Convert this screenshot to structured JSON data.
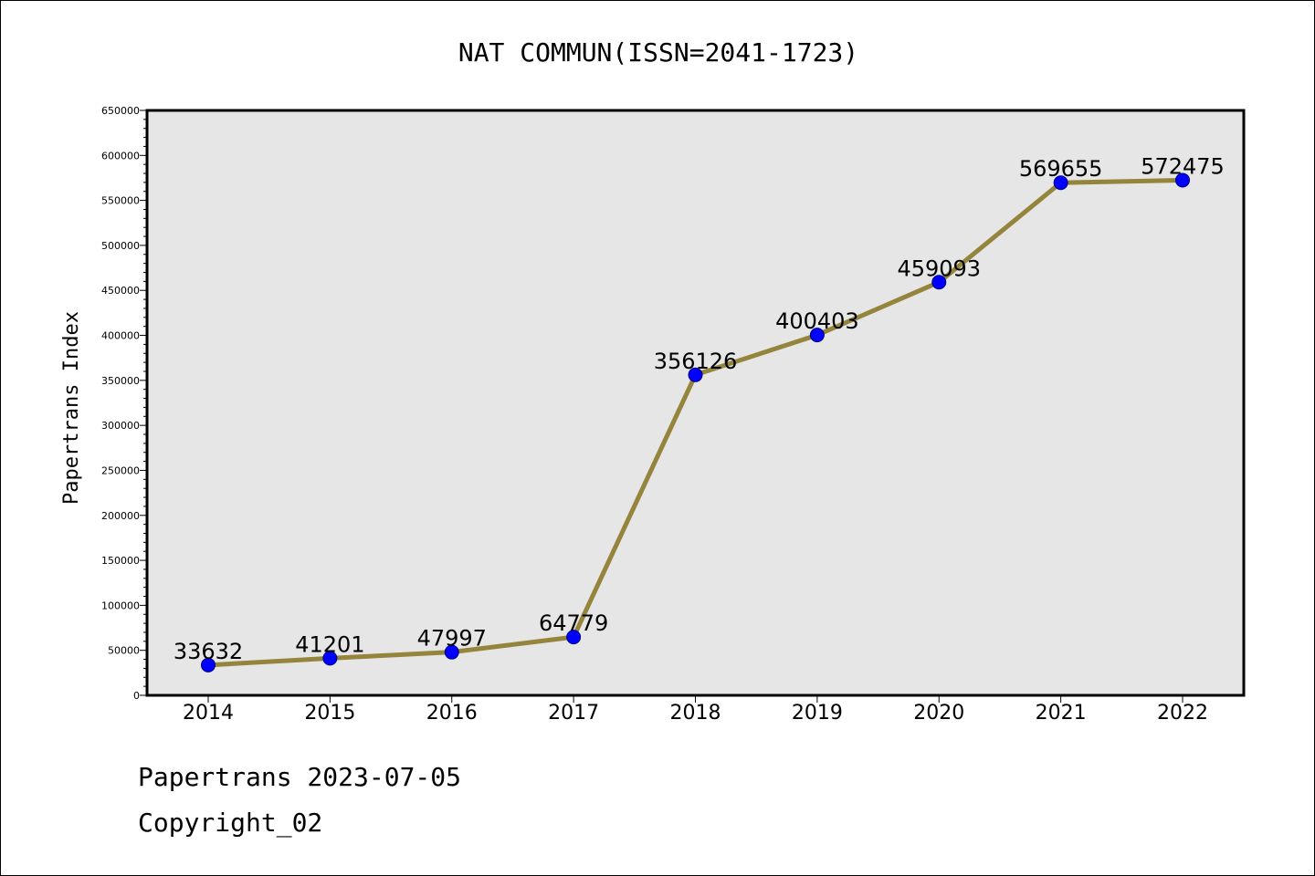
{
  "colors": {
    "plot_background": "#e6e6e6",
    "line": "#94843c",
    "marker_fill": "#0000ff",
    "marker_edge": "#000080",
    "axis": "#000000"
  },
  "footer": {
    "line1": "Papertrans 2023-07-05",
    "line2": "Copyright_02"
  },
  "chart_data": {
    "type": "line",
    "title": "NAT COMMUN(ISSN=2041-1723)",
    "xlabel": "",
    "ylabel": "Papertrans Index",
    "categories": [
      "2014",
      "2015",
      "2016",
      "2017",
      "2018",
      "2019",
      "2020",
      "2021",
      "2022"
    ],
    "series": [
      {
        "values": [
          33632,
          41201,
          47997,
          64779,
          356126,
          400403,
          459093,
          569655,
          572475
        ]
      }
    ],
    "data_labels": [
      "33632",
      "41201",
      "47997",
      "64779",
      "356126",
      "400403",
      "459093",
      "569655",
      "572475"
    ],
    "ylim": [
      0,
      650000
    ],
    "yticks": [
      0,
      50000,
      100000,
      150000,
      200000,
      250000,
      300000,
      350000,
      400000,
      450000,
      500000,
      550000,
      600000,
      650000
    ],
    "ytick_labels": [
      "0",
      "50000",
      "100000",
      "150000",
      "200000",
      "250000",
      "300000",
      "350000",
      "400000",
      "450000",
      "500000",
      "550000",
      "600000",
      "650000"
    ],
    "grid": false,
    "legend": "none"
  }
}
